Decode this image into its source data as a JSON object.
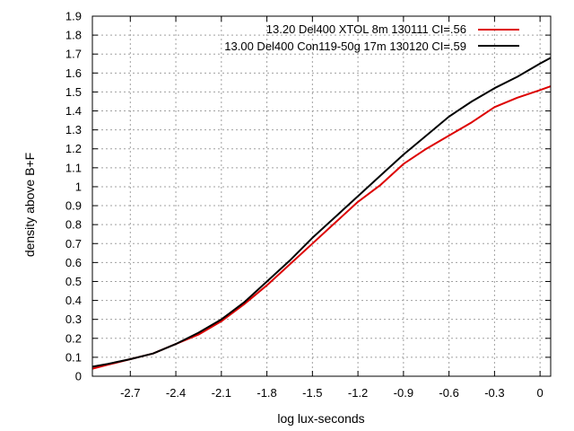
{
  "chart_data": {
    "type": "line",
    "xlabel": "log lux-seconds",
    "ylabel": "density above B+F",
    "xlim": [
      -2.95,
      0.07
    ],
    "ylim": [
      0,
      1.9
    ],
    "xticks": [
      -2.7,
      -2.4,
      -2.1,
      -1.8,
      -1.5,
      -1.2,
      -0.9,
      -0.6,
      -0.3,
      0
    ],
    "xtick_labels": [
      "-2.7",
      "-2.4",
      "-2.1",
      "-1.8",
      "-1.5",
      "-1.2",
      "-0.9",
      "-0.6",
      "-0.3",
      "0"
    ],
    "yticks": [
      0,
      0.1,
      0.2,
      0.3,
      0.4,
      0.5,
      0.6,
      0.7,
      0.8,
      0.9,
      1,
      1.1,
      1.2,
      1.3,
      1.4,
      1.5,
      1.6,
      1.7,
      1.8,
      1.9
    ],
    "ytick_labels": [
      "0",
      "0.1",
      "0.2",
      "0.3",
      "0.4",
      "0.5",
      "0.6",
      "0.7",
      "0.8",
      "0.9",
      "1",
      "1.1",
      "1.2",
      "1.3",
      "1.4",
      "1.5",
      "1.6",
      "1.7",
      "1.8",
      "1.9"
    ],
    "grid": true,
    "legend_position": "top-right",
    "series": [
      {
        "name": "13.20 Del400 XTOL 8m 130111 CI=.56",
        "color": "#dd0000",
        "x": [
          -2.95,
          -2.85,
          -2.7,
          -2.55,
          -2.4,
          -2.25,
          -2.1,
          -1.95,
          -1.8,
          -1.65,
          -1.5,
          -1.35,
          -1.2,
          -1.05,
          -0.9,
          -0.75,
          -0.6,
          -0.45,
          -0.3,
          -0.15,
          0,
          0.07
        ],
        "y": [
          0.04,
          0.06,
          0.09,
          0.12,
          0.17,
          0.22,
          0.29,
          0.38,
          0.48,
          0.59,
          0.7,
          0.81,
          0.92,
          1.01,
          1.12,
          1.2,
          1.27,
          1.34,
          1.42,
          1.47,
          1.51,
          1.53
        ]
      },
      {
        "name": "13.00 Del400 Con119-50g 17m 130120 CI=.59",
        "color": "#000000",
        "x": [
          -2.95,
          -2.85,
          -2.7,
          -2.55,
          -2.4,
          -2.25,
          -2.1,
          -1.95,
          -1.8,
          -1.65,
          -1.5,
          -1.35,
          -1.2,
          -1.05,
          -0.9,
          -0.75,
          -0.6,
          -0.45,
          -0.3,
          -0.15,
          0,
          0.07
        ],
        "y": [
          0.05,
          0.065,
          0.09,
          0.12,
          0.17,
          0.23,
          0.3,
          0.39,
          0.5,
          0.61,
          0.73,
          0.84,
          0.95,
          1.06,
          1.17,
          1.27,
          1.37,
          1.45,
          1.52,
          1.58,
          1.65,
          1.68
        ]
      }
    ]
  }
}
